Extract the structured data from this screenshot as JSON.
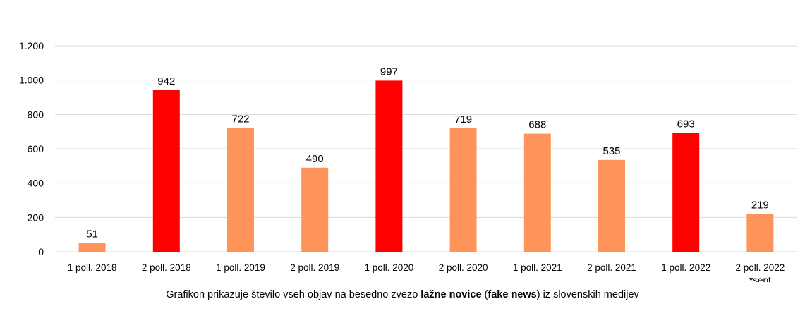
{
  "chart_data": {
    "type": "bar",
    "categories": [
      [
        "1 poll. 2018"
      ],
      [
        "2 poll. 2018"
      ],
      [
        "1 poll. 2019"
      ],
      [
        "2 poll. 2019"
      ],
      [
        "1 poll. 2020"
      ],
      [
        "2 poll. 2020"
      ],
      [
        "1 poll. 2021"
      ],
      [
        "2 poll. 2021"
      ],
      [
        "1 poll. 2022"
      ],
      [
        "2 poll. 2022",
        "*sept"
      ]
    ],
    "values": [
      51,
      942,
      722,
      490,
      997,
      719,
      688,
      535,
      693,
      219
    ],
    "value_labels": [
      "51",
      "942",
      "722",
      "490",
      "997",
      "719",
      "688",
      "535",
      "693",
      "219"
    ],
    "bar_colors": [
      "#FF945A",
      "#FF0000",
      "#FF945A",
      "#FF945A",
      "#FF0000",
      "#FF945A",
      "#FF945A",
      "#FF945A",
      "#FF0000",
      "#FF945A"
    ],
    "y_ticks": [
      0,
      200,
      400,
      600,
      800,
      1000,
      1200
    ],
    "y_tick_labels": [
      "0",
      "200",
      "400",
      "600",
      "800",
      "1.000",
      "1.200"
    ],
    "ylim": [
      0,
      1200
    ],
    "grid": true,
    "legend": "none",
    "title": "",
    "xlabel": "",
    "ylabel": "",
    "caption": {
      "prefix": "Grafikon prikazuje število vseh objav na besedno zvezo ",
      "bold1": "lažne novice",
      "mid1": " (",
      "bold2": "fake news",
      "suffix": ") iz slovenskih medijev"
    }
  },
  "colors": {
    "grid": "#D9D9D9",
    "axis": "#D9D9D9",
    "text": "#000000"
  }
}
